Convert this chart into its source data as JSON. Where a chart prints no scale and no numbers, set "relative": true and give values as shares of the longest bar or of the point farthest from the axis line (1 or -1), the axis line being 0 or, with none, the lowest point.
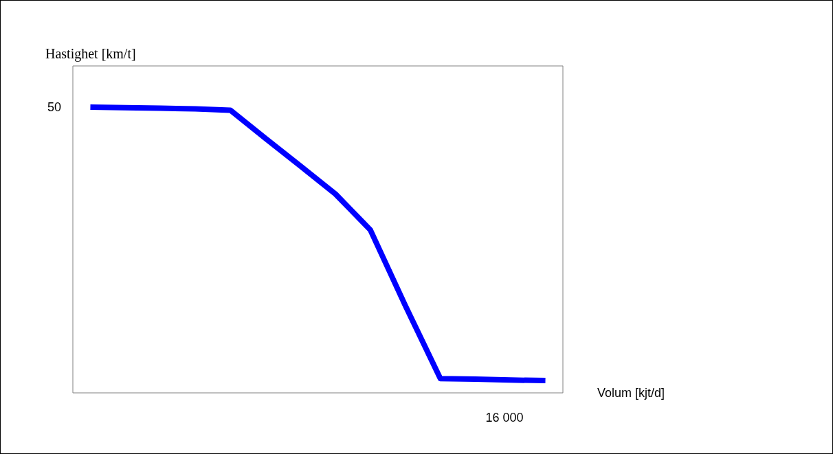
{
  "chart_data": {
    "type": "line",
    "relative": true,
    "xlabel": "Volum [kjt/d]",
    "ylabel": "Hastighet [km/t]",
    "categories": [
      null,
      null,
      null,
      null,
      null,
      null,
      null,
      null,
      null,
      null,
      null,
      null,
      null,
      null
    ],
    "series": [
      {
        "color": "#0000ff",
        "values": [
          1.0,
          0.998,
          0.996,
          0.994,
          0.989,
          0.891,
          0.794,
          0.696,
          0.57,
          0.305,
          0.05,
          0.048,
          0.045,
          0.043
        ]
      }
    ],
    "annotations": [
      "50",
      "16 000"
    ],
    "marker": "none",
    "line_style": "solid"
  }
}
